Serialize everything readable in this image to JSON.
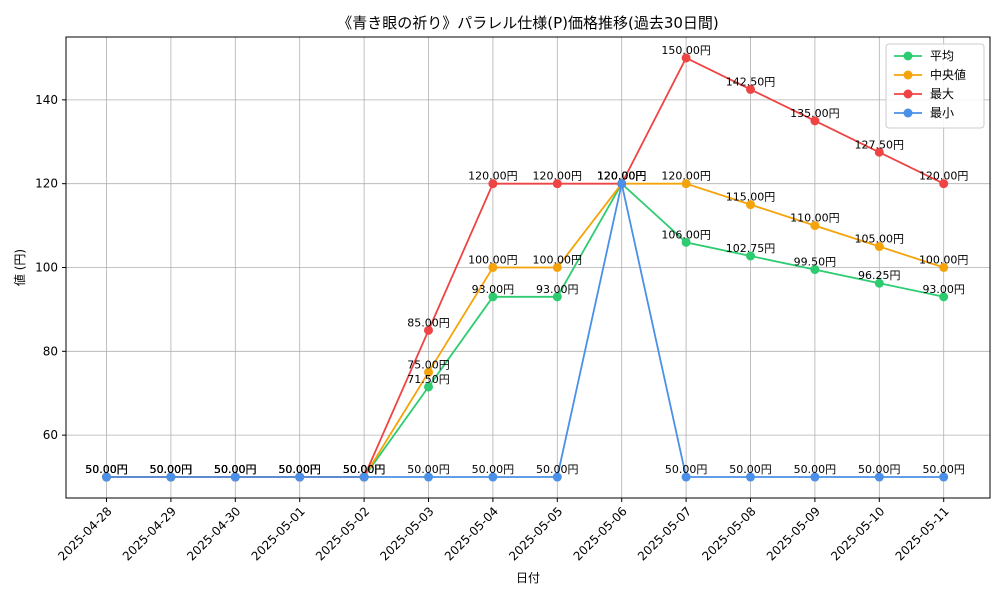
{
  "chart_data": {
    "type": "line",
    "title": "《青き眼の祈り》パラレル仕様(P)価格推移(過去30日間)",
    "xlabel": "日付",
    "ylabel": "値 (円)",
    "ylim": [
      45,
      155
    ],
    "yticks": [
      60,
      80,
      100,
      120,
      140
    ],
    "grid": true,
    "legend_position": "top-right",
    "categories": [
      "2025-04-28",
      "2025-04-29",
      "2025-04-30",
      "2025-05-01",
      "2025-05-02",
      "2025-05-03",
      "2025-05-04",
      "2025-05-05",
      "2025-05-06",
      "2025-05-07",
      "2025-05-08",
      "2025-05-09",
      "2025-05-10",
      "2025-05-11"
    ],
    "series": [
      {
        "name": "平均",
        "color": "#2ecc71",
        "values": [
          50,
          50,
          50,
          50,
          50,
          71.5,
          93,
          93,
          120,
          106,
          102.75,
          99.5,
          96.25,
          93
        ],
        "labels": [
          "50.00円",
          "50.00円",
          "50.00円",
          "50.00円",
          "50.00円",
          "71.50円",
          "93.00円",
          "93.00円",
          "120.00円",
          "106.00円",
          "102.75円",
          "99.50円",
          "96.25円",
          "93.00円"
        ]
      },
      {
        "name": "中央値",
        "color": "#f5a30a",
        "values": [
          50,
          50,
          50,
          50,
          50,
          75,
          100,
          100,
          120,
          120,
          115,
          110,
          105,
          100
        ],
        "labels": [
          "50.00円",
          "50.00円",
          "50.00円",
          "50.00円",
          "50.00円",
          "75.00円",
          "100.00円",
          "100.00円",
          "120.00円",
          "120.00円",
          "115.00円",
          "110.00円",
          "105.00円",
          "100.00円"
        ]
      },
      {
        "name": "最大",
        "color": "#ef4444",
        "values": [
          50,
          50,
          50,
          50,
          50,
          85,
          120,
          120,
          120,
          150,
          142.5,
          135,
          127.5,
          120
        ],
        "labels": [
          "50.00円",
          "50.00円",
          "50.00円",
          "50.00円",
          "50.00円",
          "85.00円",
          "120.00円",
          "120.00円",
          "120.00円",
          "150.00円",
          "142.50円",
          "135.00円",
          "127.50円",
          "120.00円"
        ]
      },
      {
        "name": "最小",
        "color": "#4a90e8",
        "values": [
          50,
          50,
          50,
          50,
          50,
          50,
          50,
          50,
          120,
          50,
          50,
          50,
          50,
          50
        ],
        "labels": [
          "50.00円",
          "50.00円",
          "50.00円",
          "50.00円",
          "50.00円",
          "50.00円",
          "50.00円",
          "50.00円",
          "120.00円",
          "50.00円",
          "50.00円",
          "50.00円",
          "50.00円",
          "50.00円"
        ]
      }
    ]
  }
}
